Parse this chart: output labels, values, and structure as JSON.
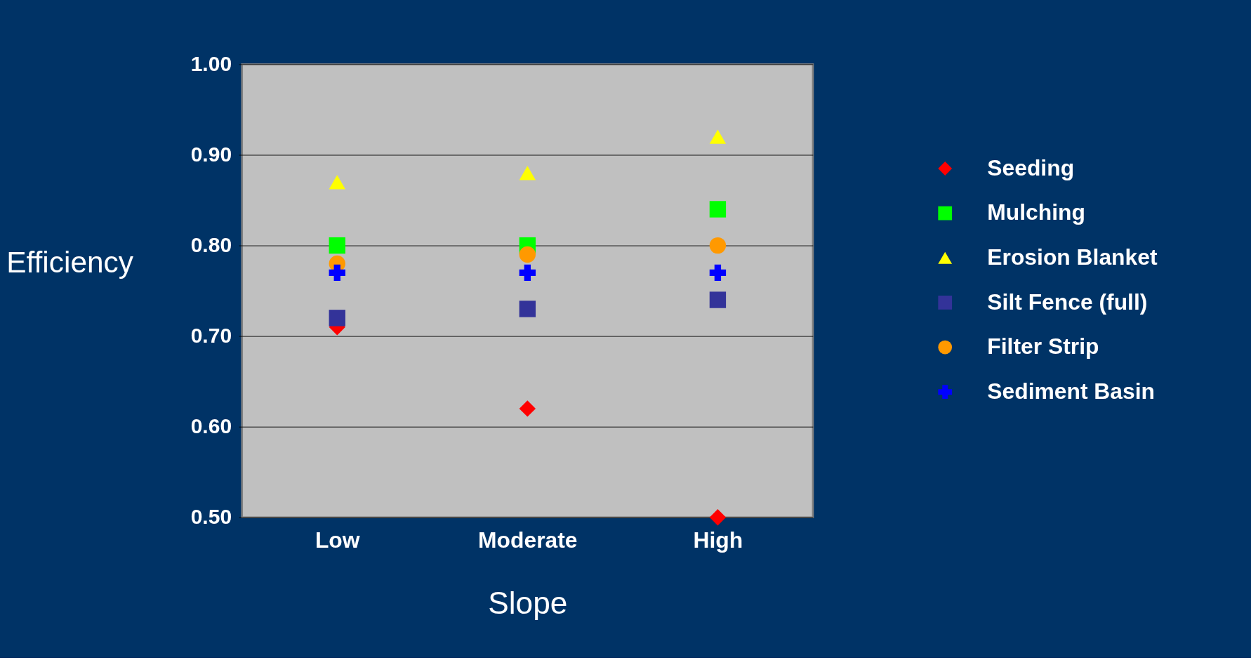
{
  "chart_data": {
    "type": "scatter",
    "xlabel": "Slope",
    "ylabel": "Efficiency",
    "categories": [
      "Low",
      "Moderate",
      "High"
    ],
    "ylim": [
      0.5,
      1.0
    ],
    "yticks": [
      {
        "value": 0.5,
        "label": "0.50"
      },
      {
        "value": 0.6,
        "label": "0.60"
      },
      {
        "value": 0.7,
        "label": "0.70"
      },
      {
        "value": 0.8,
        "label": "0.80"
      },
      {
        "value": 0.9,
        "label": "0.90"
      },
      {
        "value": 1.0,
        "label": "1.00"
      }
    ],
    "grid": "y",
    "legend": "right",
    "series": [
      {
        "name": "Seeding",
        "color": "#ff0000",
        "marker": "diamond",
        "values": [
          0.71,
          0.62,
          0.5
        ]
      },
      {
        "name": "Mulching",
        "color": "#00ff00",
        "marker": "square",
        "values": [
          0.8,
          0.8,
          0.84
        ]
      },
      {
        "name": "Erosion Blanket",
        "color": "#ffff00",
        "marker": "triangle",
        "values": [
          0.87,
          0.88,
          0.92
        ]
      },
      {
        "name": "Silt Fence (full)",
        "color": "#333399",
        "marker": "square",
        "values": [
          0.72,
          0.73,
          0.74
        ]
      },
      {
        "name": "Filter Strip",
        "color": "#ff9900",
        "marker": "circle",
        "values": [
          0.78,
          0.79,
          0.8
        ]
      },
      {
        "name": "Sediment Basin",
        "color": "#0000ff",
        "marker": "cross",
        "values": [
          0.77,
          0.77,
          0.77
        ]
      }
    ]
  }
}
